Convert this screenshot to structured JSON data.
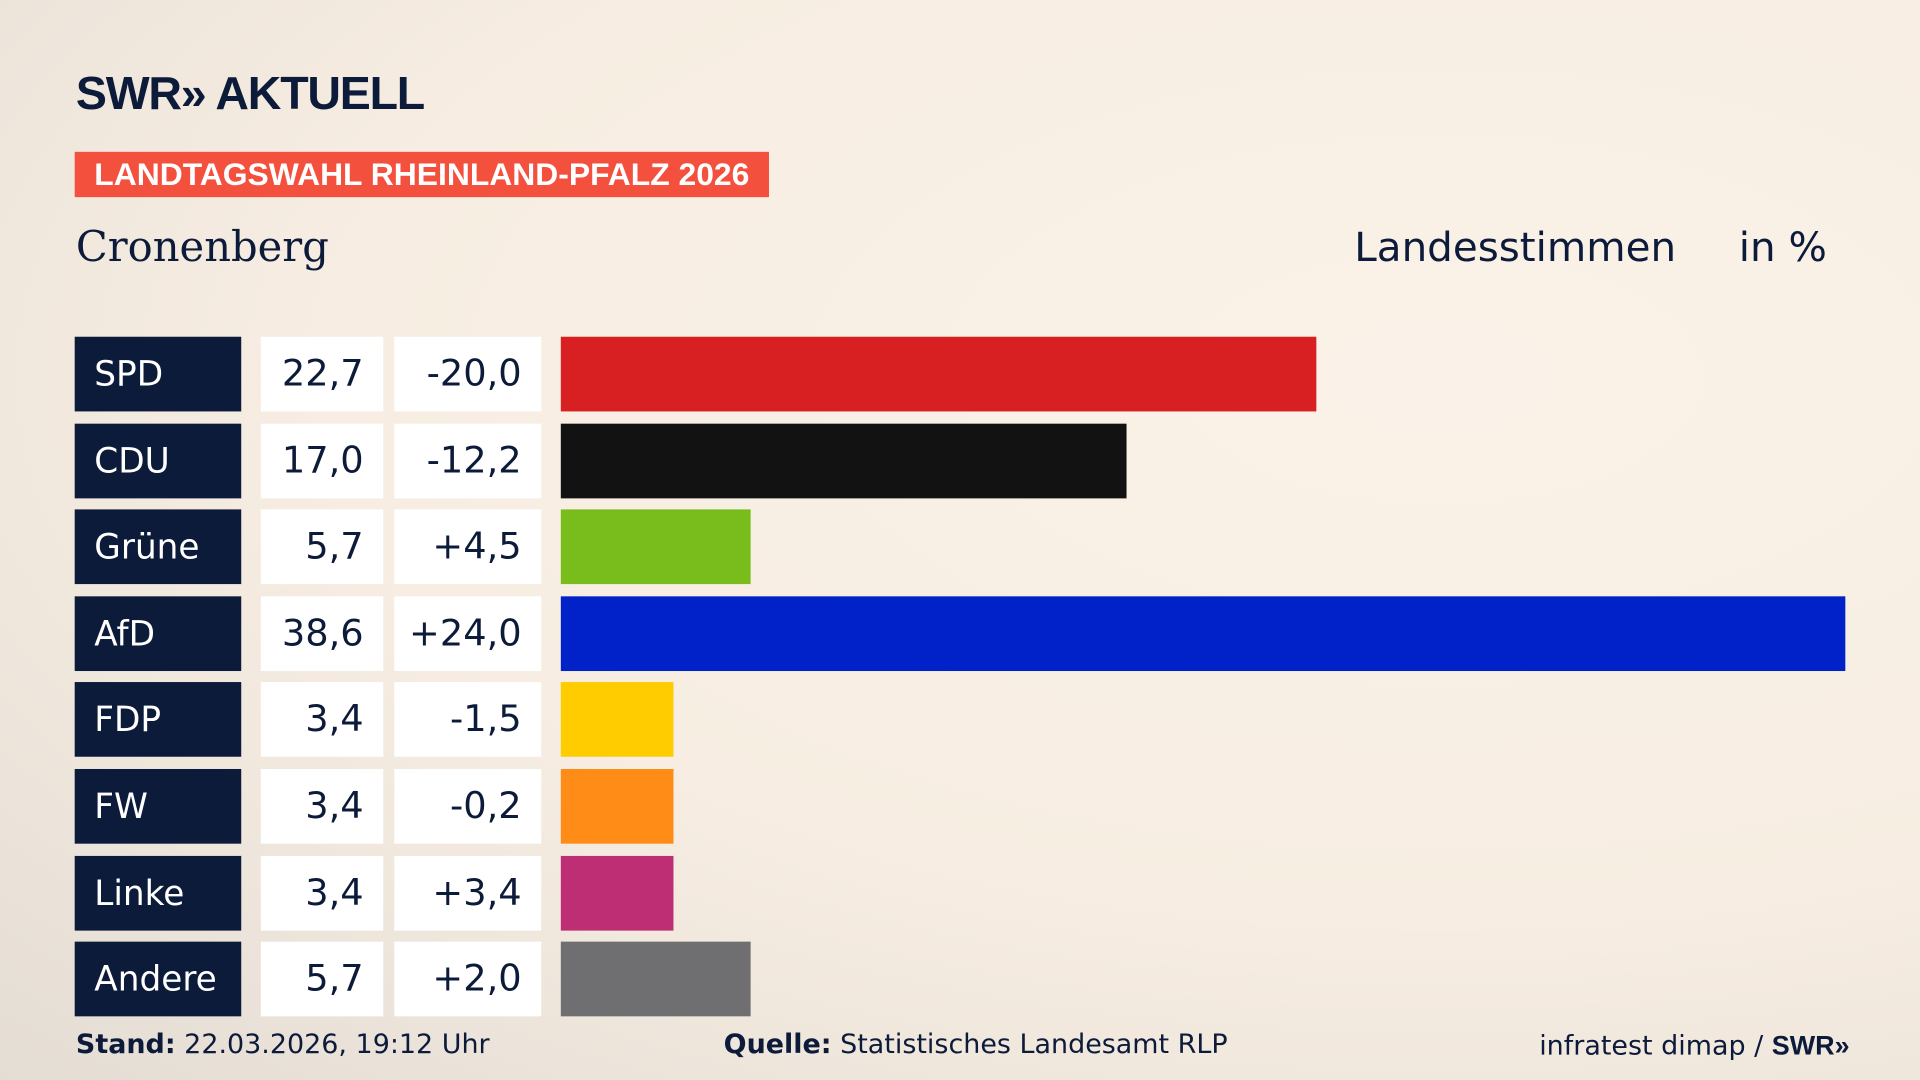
{
  "brand": {
    "logo": "SWR» AKTUELL"
  },
  "banner": "LANDTAGSWAHL RHEINLAND-PFALZ 2026",
  "region": "Cronenberg",
  "vote_type": "Landesstimmen",
  "unit": "in %",
  "chart_data": {
    "type": "bar",
    "orientation": "horizontal",
    "categories": [
      "SPD",
      "CDU",
      "Grüne",
      "AfD",
      "FDP",
      "FW",
      "Linke",
      "Andere"
    ],
    "values": [
      22.7,
      17.0,
      5.7,
      38.6,
      3.4,
      3.4,
      3.4,
      5.7
    ],
    "value_labels": [
      "22,7",
      "17,0",
      "5,7",
      "38,6",
      "3,4",
      "3,4",
      "3,4",
      "5,7"
    ],
    "change_labels": [
      "-20,0",
      "-12,2",
      "+4,5",
      "+24,0",
      "-1,5",
      "-0,2",
      "+3,4",
      "+2,0"
    ],
    "colors": [
      "#d81f21",
      "#121212",
      "#79bd1c",
      "#0022c8",
      "#ffcc00",
      "#ff8c17",
      "#be2e74",
      "#6f6f72"
    ]
  },
  "footer": {
    "stand_label": "Stand:",
    "stand_value": " 22.03.2026, 19:12 Uhr",
    "source_label": "Quelle:",
    "source_value": " Statistisches Landesamt RLP",
    "credit": "infratest dimap / ",
    "credit_brand": "SWR»"
  }
}
